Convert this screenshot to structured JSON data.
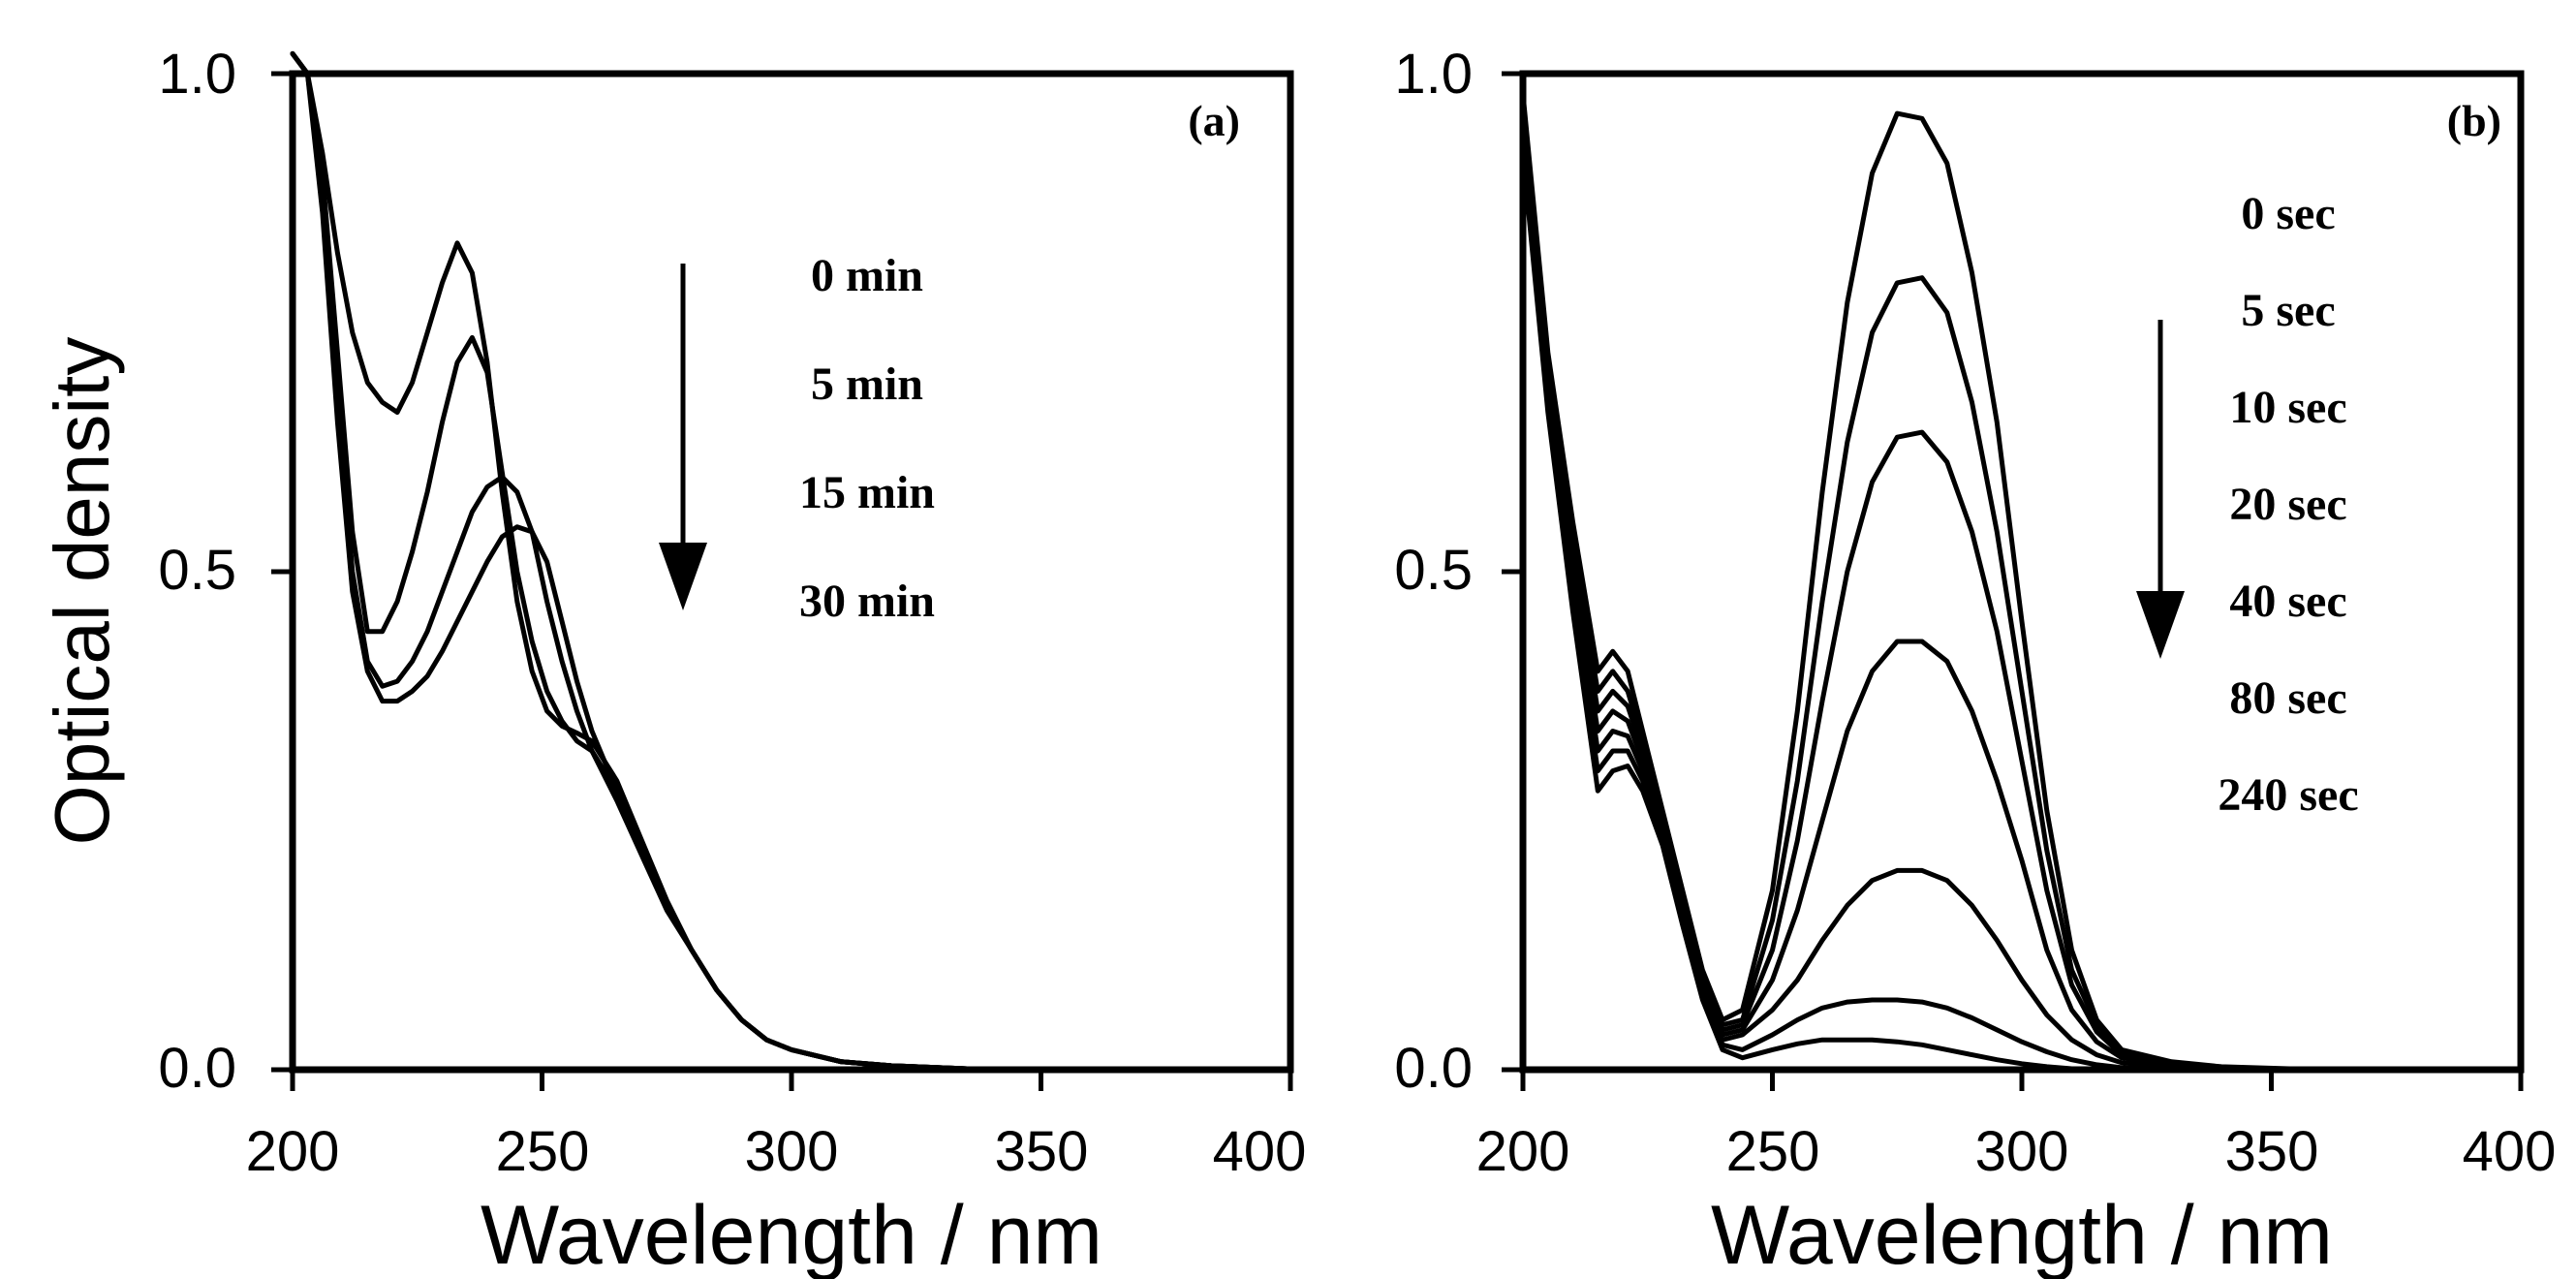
{
  "chart_data": [
    {
      "type": "line",
      "panel_label": "(a)",
      "xlabel": "Wavelength / nm",
      "ylabel": "Optical density",
      "xlim": [
        200,
        400
      ],
      "ylim": [
        0,
        1
      ],
      "xticks": [
        "200",
        "250",
        "300",
        "350",
        "400"
      ],
      "yticks": [
        "0.0",
        "0.5",
        "1.0"
      ],
      "legend": [
        "0 min",
        "5 min",
        "15 min",
        "30 min"
      ],
      "legend_arrow": "down",
      "series": [
        {
          "name": "0 min",
          "x": [
            200,
            203,
            206,
            209,
            212,
            215,
            218,
            221,
            224,
            227,
            230,
            233,
            236,
            239,
            242,
            245,
            248,
            251,
            254,
            257,
            260,
            265,
            270,
            275,
            280,
            285,
            290,
            295,
            300,
            310,
            320,
            340,
            360,
            400
          ],
          "y": [
            1.02,
            1.0,
            0.92,
            0.82,
            0.74,
            0.69,
            0.67,
            0.66,
            0.69,
            0.74,
            0.79,
            0.83,
            0.8,
            0.71,
            0.58,
            0.47,
            0.4,
            0.36,
            0.345,
            0.338,
            0.33,
            0.29,
            0.23,
            0.17,
            0.12,
            0.08,
            0.05,
            0.03,
            0.02,
            0.008,
            0.004,
            0.0,
            0.0,
            0.0
          ]
        },
        {
          "name": "5 min",
          "x": [
            200,
            203,
            206,
            209,
            212,
            215,
            218,
            221,
            224,
            227,
            230,
            233,
            236,
            239,
            242,
            245,
            248,
            251,
            254,
            257,
            260,
            265,
            270,
            275,
            280,
            285,
            290,
            295,
            300,
            310,
            320,
            340,
            360,
            400
          ],
          "y": [
            1.02,
            1.0,
            0.9,
            0.72,
            0.54,
            0.44,
            0.44,
            0.47,
            0.52,
            0.58,
            0.65,
            0.71,
            0.735,
            0.7,
            0.6,
            0.5,
            0.43,
            0.38,
            0.35,
            0.33,
            0.32,
            0.28,
            0.22,
            0.165,
            0.12,
            0.08,
            0.05,
            0.03,
            0.02,
            0.008,
            0.004,
            0.0,
            0.0,
            0.0
          ]
        },
        {
          "name": "15 min",
          "x": [
            200,
            203,
            206,
            209,
            212,
            215,
            218,
            221,
            224,
            227,
            230,
            233,
            236,
            239,
            242,
            245,
            248,
            251,
            254,
            257,
            260,
            265,
            270,
            275,
            280,
            285,
            290,
            295,
            300,
            310,
            320,
            340,
            360,
            400
          ],
          "y": [
            1.02,
            1.0,
            0.88,
            0.68,
            0.5,
            0.41,
            0.385,
            0.39,
            0.41,
            0.44,
            0.48,
            0.52,
            0.56,
            0.585,
            0.595,
            0.58,
            0.54,
            0.47,
            0.41,
            0.36,
            0.32,
            0.27,
            0.215,
            0.16,
            0.12,
            0.08,
            0.05,
            0.03,
            0.02,
            0.008,
            0.004,
            0.0,
            0.0,
            0.0
          ]
        },
        {
          "name": "30 min",
          "x": [
            200,
            203,
            206,
            209,
            212,
            215,
            218,
            221,
            224,
            227,
            230,
            233,
            236,
            239,
            242,
            245,
            248,
            251,
            254,
            257,
            260,
            265,
            270,
            275,
            280,
            285,
            290,
            295,
            300,
            310,
            320,
            340,
            360,
            400
          ],
          "y": [
            1.02,
            1.0,
            0.86,
            0.65,
            0.48,
            0.4,
            0.37,
            0.37,
            0.38,
            0.395,
            0.42,
            0.45,
            0.48,
            0.51,
            0.535,
            0.545,
            0.54,
            0.51,
            0.45,
            0.39,
            0.34,
            0.28,
            0.22,
            0.165,
            0.12,
            0.08,
            0.05,
            0.03,
            0.02,
            0.008,
            0.004,
            0.0,
            0.0,
            0.0
          ]
        }
      ]
    },
    {
      "type": "line",
      "panel_label": "(b)",
      "xlabel": "Wavelength / nm",
      "ylabel": "",
      "xlim": [
        200,
        400
      ],
      "ylim": [
        0,
        1
      ],
      "xticks": [
        "200",
        "250",
        "300",
        "350",
        "400"
      ],
      "yticks": [
        "0.0",
        "0.5",
        "1.0"
      ],
      "legend": [
        "0 sec",
        "5 sec",
        "10 sec",
        "20 sec",
        "40 sec",
        "80 sec",
        "240 sec"
      ],
      "legend_arrow": "down",
      "series": [
        {
          "name": "0 sec",
          "x": [
            200,
            205,
            210,
            215,
            218,
            221,
            224,
            228,
            232,
            236,
            240,
            244,
            250,
            255,
            260,
            265,
            270,
            275,
            280,
            285,
            290,
            295,
            300,
            305,
            310,
            315,
            320,
            330,
            340,
            360,
            400
          ],
          "y": [
            0.98,
            0.72,
            0.55,
            0.4,
            0.42,
            0.4,
            0.34,
            0.26,
            0.18,
            0.1,
            0.05,
            0.06,
            0.18,
            0.36,
            0.58,
            0.77,
            0.9,
            0.96,
            0.955,
            0.91,
            0.8,
            0.65,
            0.45,
            0.26,
            0.12,
            0.05,
            0.02,
            0.008,
            0.003,
            0.0,
            0.0
          ]
        },
        {
          "name": "5 sec",
          "x": [
            200,
            205,
            210,
            215,
            218,
            221,
            224,
            228,
            232,
            236,
            240,
            244,
            250,
            255,
            260,
            265,
            270,
            275,
            280,
            285,
            290,
            295,
            300,
            305,
            310,
            315,
            320,
            330,
            340,
            360,
            400
          ],
          "y": [
            0.97,
            0.71,
            0.53,
            0.38,
            0.4,
            0.38,
            0.33,
            0.25,
            0.17,
            0.095,
            0.045,
            0.05,
            0.15,
            0.29,
            0.47,
            0.63,
            0.74,
            0.79,
            0.795,
            0.76,
            0.67,
            0.54,
            0.38,
            0.22,
            0.1,
            0.045,
            0.018,
            0.006,
            0.002,
            0.0,
            0.0
          ]
        },
        {
          "name": "10 sec",
          "x": [
            200,
            205,
            210,
            215,
            218,
            221,
            224,
            228,
            232,
            236,
            240,
            244,
            250,
            255,
            260,
            265,
            270,
            275,
            280,
            285,
            290,
            295,
            300,
            305,
            310,
            315,
            320,
            330,
            340,
            360,
            400
          ],
          "y": [
            0.96,
            0.7,
            0.52,
            0.36,
            0.38,
            0.365,
            0.32,
            0.245,
            0.165,
            0.09,
            0.04,
            0.045,
            0.12,
            0.23,
            0.37,
            0.5,
            0.59,
            0.635,
            0.64,
            0.61,
            0.54,
            0.44,
            0.31,
            0.18,
            0.085,
            0.038,
            0.015,
            0.005,
            0.002,
            0.0,
            0.0
          ]
        },
        {
          "name": "20 sec",
          "x": [
            200,
            205,
            210,
            215,
            218,
            221,
            224,
            228,
            232,
            236,
            240,
            244,
            250,
            255,
            260,
            265,
            270,
            275,
            280,
            285,
            290,
            295,
            300,
            305,
            310,
            315,
            320,
            330,
            340,
            360,
            400
          ],
          "y": [
            0.95,
            0.69,
            0.5,
            0.34,
            0.36,
            0.35,
            0.31,
            0.24,
            0.16,
            0.085,
            0.035,
            0.04,
            0.09,
            0.16,
            0.25,
            0.34,
            0.4,
            0.43,
            0.43,
            0.41,
            0.36,
            0.29,
            0.21,
            0.12,
            0.06,
            0.028,
            0.012,
            0.004,
            0.001,
            0.0,
            0.0
          ]
        },
        {
          "name": "40 sec",
          "x": [
            200,
            205,
            210,
            215,
            218,
            221,
            224,
            228,
            232,
            236,
            240,
            244,
            250,
            255,
            260,
            265,
            270,
            275,
            280,
            285,
            290,
            295,
            300,
            305,
            310,
            315,
            320,
            330,
            340,
            360,
            400
          ],
          "y": [
            0.94,
            0.68,
            0.49,
            0.32,
            0.34,
            0.335,
            0.3,
            0.235,
            0.155,
            0.08,
            0.03,
            0.035,
            0.06,
            0.09,
            0.13,
            0.165,
            0.19,
            0.2,
            0.2,
            0.19,
            0.165,
            0.13,
            0.09,
            0.055,
            0.03,
            0.015,
            0.007,
            0.002,
            0.0,
            0.0,
            0.0
          ]
        },
        {
          "name": "80 sec",
          "x": [
            200,
            205,
            210,
            215,
            218,
            221,
            224,
            228,
            232,
            236,
            240,
            244,
            250,
            255,
            260,
            265,
            270,
            275,
            280,
            285,
            290,
            295,
            300,
            305,
            310,
            315,
            320,
            330,
            340,
            360,
            400
          ],
          "y": [
            0.93,
            0.67,
            0.47,
            0.3,
            0.32,
            0.32,
            0.29,
            0.23,
            0.15,
            0.075,
            0.025,
            0.02,
            0.035,
            0.05,
            0.062,
            0.068,
            0.07,
            0.07,
            0.068,
            0.062,
            0.052,
            0.04,
            0.028,
            0.018,
            0.01,
            0.005,
            0.002,
            0.0,
            0.0,
            0.0,
            0.0
          ]
        },
        {
          "name": "240 sec",
          "x": [
            200,
            205,
            210,
            215,
            218,
            221,
            224,
            228,
            232,
            236,
            240,
            244,
            250,
            255,
            260,
            265,
            270,
            275,
            280,
            285,
            290,
            295,
            300,
            305,
            310,
            315,
            320,
            330,
            340,
            360,
            400
          ],
          "y": [
            0.92,
            0.66,
            0.46,
            0.28,
            0.3,
            0.305,
            0.28,
            0.225,
            0.145,
            0.07,
            0.02,
            0.012,
            0.02,
            0.026,
            0.03,
            0.03,
            0.03,
            0.028,
            0.025,
            0.02,
            0.015,
            0.01,
            0.006,
            0.003,
            0.001,
            0.0,
            0.0,
            0.0,
            0.0,
            0.0,
            0.0
          ]
        }
      ]
    }
  ]
}
